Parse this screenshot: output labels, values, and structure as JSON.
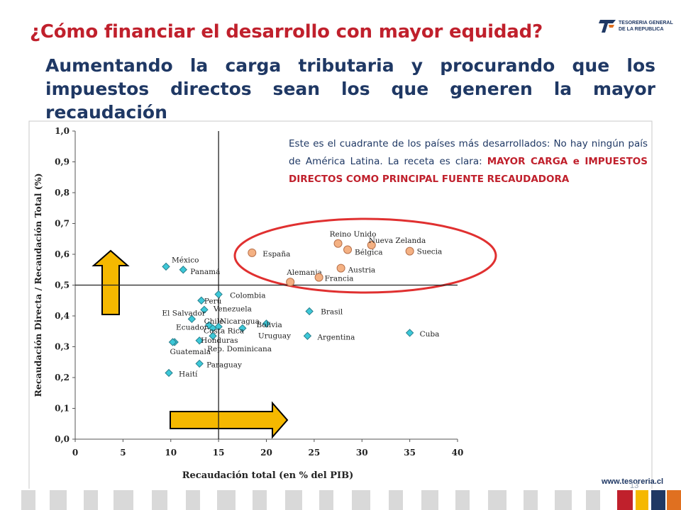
{
  "header": {
    "title": "¿Cómo financiar el desarrollo con mayor equidad?",
    "subtitle": "Aumentando la carga tributaria y procurando que los impuestos directos sean los que generen la mayor recaudación",
    "logo_line1": "TESORERIA GENERAL",
    "logo_line2": "DE LA REPUBLICA"
  },
  "annotation": {
    "text_before": "Este es el cuadrante de los países más desarrollados: No hay ningún país de América Latina. La receta es clara: ",
    "highlight": "MAYOR CARGA e IMPUESTOS DIRECTOS COMO PRINCIPAL FUENTE RECAUDADORA"
  },
  "footer": {
    "url": "www.tesoreria.cl",
    "page": "13"
  },
  "colors": {
    "title": "#c0202c",
    "subtitle": "#1f3864",
    "latam_marker": "#3cc8d8",
    "oecd_marker": "#f4b183",
    "ellipse": "#e03030",
    "arrow_fill": "#f5b800"
  },
  "chart_data": {
    "type": "scatter",
    "xlabel": "Recaudación total (en % del PIB)",
    "ylabel": "Recaudación Directa / Recaudación Total (%)",
    "xlim": [
      0,
      40
    ],
    "ylim": [
      0,
      1.0
    ],
    "x_ticks": [
      "0",
      "5",
      "10",
      "15",
      "20",
      "25",
      "30",
      "35",
      "40"
    ],
    "y_ticks": [
      "0,0",
      "0,1",
      "0,2",
      "0,3",
      "0,4",
      "0,5",
      "0,6",
      "0,7",
      "0,8",
      "0,9",
      "1,0"
    ],
    "reference_lines": {
      "x": 15,
      "y": 0.5
    },
    "grid": false,
    "series": [
      {
        "group": "latam",
        "marker": "diamond",
        "points": [
          {
            "label": "México",
            "x": 9.5,
            "y": 0.56
          },
          {
            "label": "Panamá",
            "x": 11.3,
            "y": 0.55
          },
          {
            "label": "Colombia",
            "x": 15.0,
            "y": 0.47
          },
          {
            "label": "Perú",
            "x": 13.2,
            "y": 0.45
          },
          {
            "label": "Venezuela",
            "x": 13.5,
            "y": 0.42
          },
          {
            "label": "El Salvador",
            "x": 12.2,
            "y": 0.39
          },
          {
            "label": "Chile",
            "x": 14.0,
            "y": 0.37
          },
          {
            "label": "Ecuador",
            "x": 14.4,
            "y": 0.36
          },
          {
            "label": "Nicaragua",
            "x": 15.0,
            "y": 0.365
          },
          {
            "label": "Bolivia",
            "x": 20.0,
            "y": 0.375
          },
          {
            "label": "Uruguay",
            "x": 17.5,
            "y": 0.36
          },
          {
            "label": "Costa Rica",
            "x": 14.4,
            "y": 0.335
          },
          {
            "label": "Honduras",
            "x": 13.0,
            "y": 0.32
          },
          {
            "label": "Rep. Dominicana",
            "x": 10.4,
            "y": 0.315
          },
          {
            "label": "Guatemala",
            "x": 10.2,
            "y": 0.315
          },
          {
            "label": "Paraguay",
            "x": 13.0,
            "y": 0.245
          },
          {
            "label": "Haití",
            "x": 9.8,
            "y": 0.215
          },
          {
            "label": "Brasil",
            "x": 24.5,
            "y": 0.415
          },
          {
            "label": "Argentina",
            "x": 24.3,
            "y": 0.335
          },
          {
            "label": "Cuba",
            "x": 35.0,
            "y": 0.345
          }
        ]
      },
      {
        "group": "developed",
        "marker": "circle",
        "points": [
          {
            "label": "España",
            "x": 18.5,
            "y": 0.605
          },
          {
            "label": "Reino Unido",
            "x": 27.5,
            "y": 0.635
          },
          {
            "label": "Nueva Zelanda",
            "x": 31.0,
            "y": 0.63
          },
          {
            "label": "Bélgica",
            "x": 28.5,
            "y": 0.615
          },
          {
            "label": "Suecia",
            "x": 35.0,
            "y": 0.61
          },
          {
            "label": "Alemania",
            "x": 22.5,
            "y": 0.51
          },
          {
            "label": "Austria",
            "x": 27.8,
            "y": 0.555
          },
          {
            "label": "Francia",
            "x": 25.5,
            "y": 0.525
          }
        ]
      }
    ]
  }
}
